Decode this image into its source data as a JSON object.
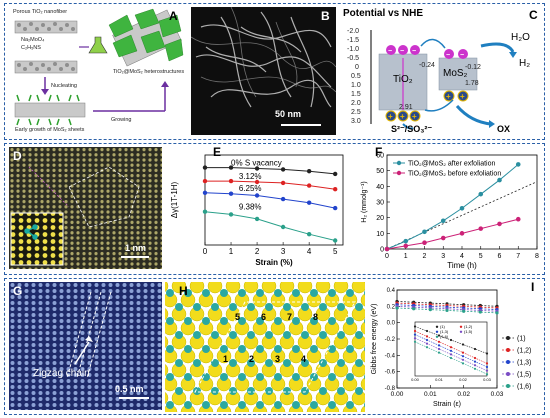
{
  "panel_labels": [
    "A",
    "B",
    "C",
    "D",
    "E",
    "F",
    "G",
    "H",
    "I"
  ],
  "panelA": {
    "nanofiber_label": "Porous TiO₂ nanofiber",
    "reagent1": "Na₂MoO₄",
    "reagent2": "C₂H₅NS",
    "step_nucleating": "Nucleating",
    "step_growing": "Growing",
    "stage_early": "Early growth of MoS₂ sheets",
    "product": "TiO₂@MoS₂ heterostructures"
  },
  "panelB": {
    "scalebar": "50 nm"
  },
  "panelC": {
    "axis_title": "Potential vs NHE",
    "ticks": [
      "-2.0",
      "-1.5",
      "-1.0",
      "-0.5",
      "0",
      "0.5",
      "1.0",
      "1.5",
      "2.0",
      "2.5",
      "3.0"
    ],
    "tio2_label": "TiO₂",
    "mos2_label": "MoS₂",
    "tio2_cb": "-0.24",
    "tio2_vb": "2.91",
    "mos2_cb": "-0.12",
    "mos2_vb": "1.78",
    "h2o": "H₂O",
    "h2": "H₂",
    "sacrificial": "S²⁻/SO₃²⁻",
    "ox": "OX",
    "colors": {
      "tio2": "#a9b4c2",
      "mos2": "#a9b4c2",
      "electron": "#cc33cc",
      "hole": "#e6b800"
    }
  },
  "panelD": {
    "scalebar": "1 nm"
  },
  "panelE": {
    "ylabel": "Δγ(1T-1H)",
    "xlabel": "Strain (%)",
    "xticks": [
      "0",
      "1",
      "2",
      "3",
      "4",
      "5"
    ],
    "labels": [
      "0% S vacancy",
      "3.12%",
      "6.25%",
      "9.38%"
    ]
  },
  "panelF": {
    "ylabel": "H₂ (mmolg⁻¹)",
    "xlabel": "Time (h)",
    "xticks": [
      "0",
      "1",
      "2",
      "3",
      "4",
      "5",
      "6",
      "7",
      "8"
    ],
    "yticks": [
      "0",
      "10",
      "20",
      "30",
      "40",
      "50",
      "60"
    ],
    "legend": [
      "TiO₂@MoS₂ after exfoliation",
      "TiO₂@MoS₂ before exfoliation"
    ]
  },
  "panelG": {
    "annotation": "Zigzag chain",
    "scalebar": "0.5 nm"
  },
  "panelH": {
    "numbers": [
      "1",
      "2",
      "3",
      "4",
      "5",
      "6",
      "7",
      "8"
    ]
  },
  "panelI": {
    "ylabel": "Gibbs free energy (eV)",
    "xlabel": "Strain (ε)",
    "xticks": [
      "0.00",
      "0.01",
      "0.02",
      "0.03"
    ],
    "yticks": [
      "0.4",
      "0.2",
      "0.0",
      "-0.2",
      "-0.4",
      "-0.6",
      "-0.8"
    ],
    "legend": [
      "(1)",
      "(1,2)",
      "(1,3)",
      "(1,5)",
      "(1,6)"
    ],
    "inset_legend": [
      "(1)",
      "(1,2)",
      "(1,3)",
      "(1,5)",
      "(1,6)"
    ],
    "inset_ylabel": "Gibbs free energy (eV)",
    "inset_xlabel": "Strain (ε)",
    "inset_xticks": [
      "0.00",
      "0.01",
      "0.02",
      "0.03"
    ]
  },
  "chart_data": [
    {
      "type": "line",
      "panel": "E",
      "xlabel": "Strain (%)",
      "ylabel": "Δγ(1T-1H)",
      "x": [
        0,
        1,
        2,
        3,
        4,
        5
      ],
      "series": [
        {
          "name": "0% S vacancy",
          "values": [
            0.86,
            0.86,
            0.85,
            0.84,
            0.82,
            0.79
          ],
          "color": "#222222"
        },
        {
          "name": "3.12%",
          "values": [
            0.71,
            0.71,
            0.7,
            0.69,
            0.66,
            0.62
          ],
          "color": "#dd2222"
        },
        {
          "name": "6.25%",
          "values": [
            0.58,
            0.57,
            0.55,
            0.51,
            0.47,
            0.41
          ],
          "color": "#2244cc"
        },
        {
          "name": "9.38%",
          "values": [
            0.37,
            0.34,
            0.29,
            0.2,
            0.12,
            0.05
          ],
          "color": "#2aa08a"
        }
      ],
      "ylim": [
        0,
        1.0
      ]
    },
    {
      "type": "line",
      "panel": "F",
      "xlabel": "Time (h)",
      "ylabel": "H₂ (mmolg⁻¹)",
      "x": [
        0,
        1,
        2,
        3,
        4,
        5,
        6,
        7
      ],
      "series": [
        {
          "name": "TiO₂@MoS₂ after exfoliation",
          "values": [
            0,
            5,
            11,
            18,
            26,
            35,
            44,
            54
          ],
          "color": "#2a8fa0"
        },
        {
          "name": "TiO₂@MoS₂ before exfoliation",
          "values": [
            0,
            2,
            4,
            7,
            10,
            13,
            16,
            19
          ],
          "color": "#cc2277"
        }
      ],
      "xlim": [
        0,
        8
      ],
      "ylim": [
        0,
        60
      ]
    },
    {
      "type": "line",
      "panel": "I",
      "xlabel": "Strain (ε)",
      "ylabel": "Gibbs free energy (eV)",
      "x": [
        0.0,
        0.005,
        0.01,
        0.015,
        0.02,
        0.025,
        0.03
      ],
      "series": [
        {
          "name": "(1)",
          "values": [
            0.26,
            0.25,
            0.24,
            0.23,
            0.22,
            0.21,
            0.2
          ],
          "color": "#222222"
        },
        {
          "name": "(1,2)",
          "values": [
            0.24,
            0.23,
            0.22,
            0.21,
            0.2,
            0.19,
            0.18
          ],
          "color": "#dd2222"
        },
        {
          "name": "(1,3)",
          "values": [
            0.22,
            0.21,
            0.2,
            0.19,
            0.18,
            0.17,
            0.16
          ],
          "color": "#2244cc"
        },
        {
          "name": "(1,5)",
          "values": [
            0.2,
            0.19,
            0.18,
            0.17,
            0.16,
            0.15,
            0.14
          ],
          "color": "#7a4cc4"
        },
        {
          "name": "(1,6)",
          "values": [
            0.18,
            0.17,
            0.16,
            0.15,
            0.14,
            0.13,
            0.12
          ],
          "color": "#2aa08a"
        }
      ],
      "xlim": [
        0,
        0.03
      ],
      "ylim": [
        -0.8,
        0.4
      ]
    }
  ]
}
